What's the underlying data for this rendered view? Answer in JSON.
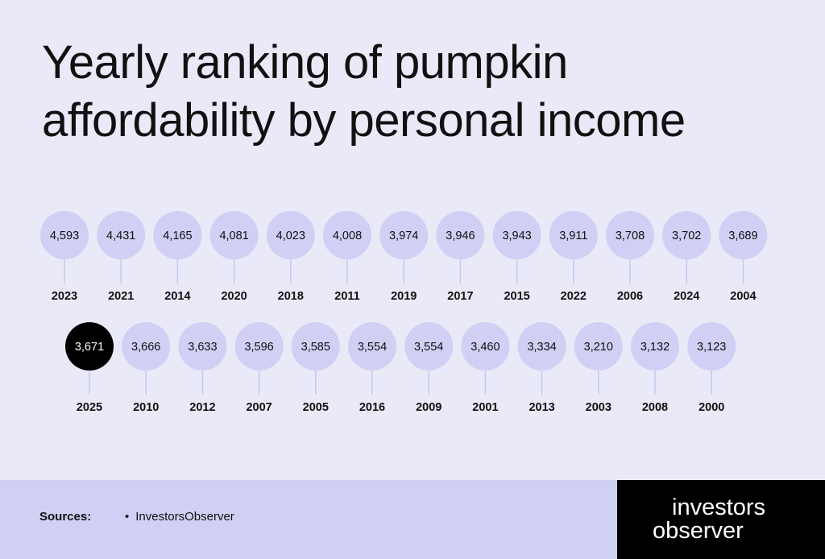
{
  "title": {
    "line1": "Yearly ranking of pumpkin",
    "line2": "affordability by personal income"
  },
  "chart_data": {
    "type": "bar",
    "title": "Yearly ranking of pumpkin affordability by personal income",
    "highlight_year": "2025",
    "categories": [
      "2023",
      "2021",
      "2014",
      "2020",
      "2018",
      "2011",
      "2019",
      "2017",
      "2015",
      "2022",
      "2006",
      "2024",
      "2004",
      "2025",
      "2010",
      "2012",
      "2007",
      "2005",
      "2016",
      "2009",
      "2001",
      "2013",
      "2003",
      "2008",
      "2000"
    ],
    "values": [
      4593,
      4431,
      4165,
      4081,
      4023,
      4008,
      3974,
      3946,
      3943,
      3911,
      3708,
      3702,
      3689,
      3671,
      3666,
      3633,
      3596,
      3585,
      3554,
      3554,
      3460,
      3334,
      3210,
      3132,
      3123
    ],
    "value_labels": [
      "4,593",
      "4,431",
      "4,165",
      "4,081",
      "4,023",
      "4,008",
      "3,974",
      "3,946",
      "3,943",
      "3,911",
      "3,708",
      "3,702",
      "3,689",
      "3,671",
      "3,666",
      "3,633",
      "3,596",
      "3,585",
      "3,554",
      "3,554",
      "3,460",
      "3,334",
      "3,210",
      "3,132",
      "3,123"
    ],
    "rows": [
      13,
      12
    ]
  },
  "colors": {
    "background": "#e9e9f8",
    "bubble": "#d0cff4",
    "highlight": "#000000",
    "stem": "#c8c7ee",
    "footer": "#d0cff4"
  },
  "footer": {
    "sources_label": "Sources:",
    "sources": [
      "InvestorsObserver"
    ]
  },
  "logo": {
    "line1": "investors",
    "line2": "observer"
  }
}
